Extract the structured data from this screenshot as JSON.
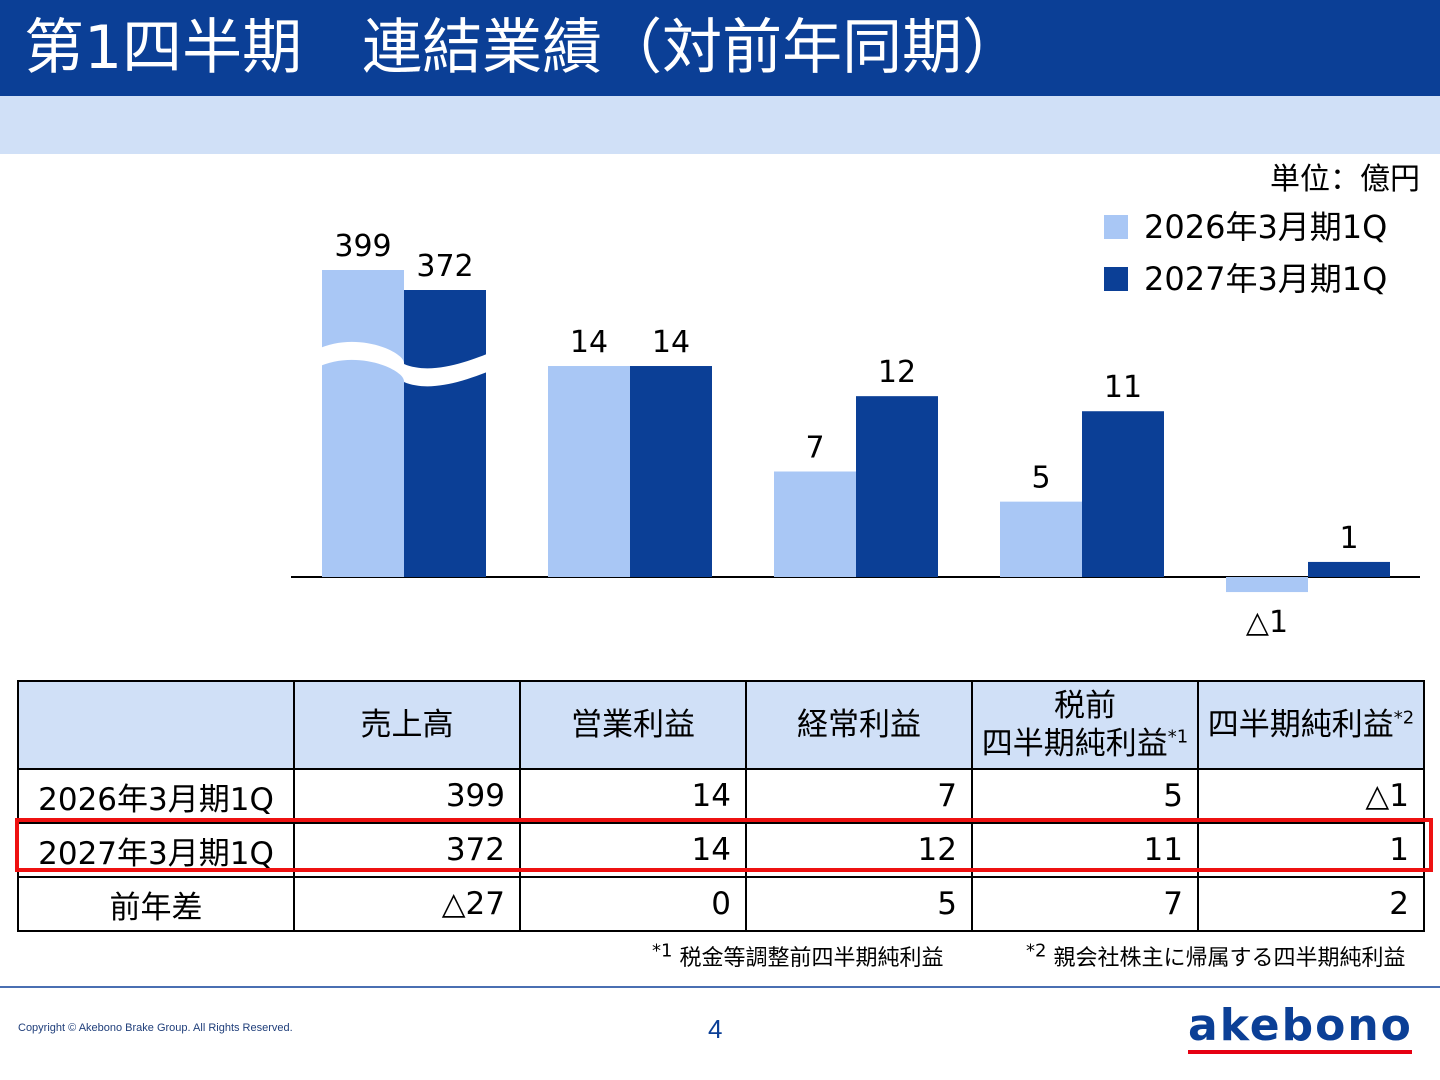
{
  "header": {
    "title": "第1四半期　連結業績（対前年同期）"
  },
  "unit_label": "単位：億円",
  "chart_data": {
    "type": "bar",
    "categories": [
      "売上高",
      "営業利益",
      "経常利益",
      "税前四半期純利益",
      "四半期純利益"
    ],
    "series": [
      {
        "name": "2026年3月期1Q",
        "values": [
          399,
          14,
          7,
          5,
          -1
        ],
        "labels": [
          "399",
          "14",
          "7",
          "5",
          "△1"
        ],
        "color": "#a9c7f5"
      },
      {
        "name": "2027年3月期1Q",
        "values": [
          372,
          14,
          12,
          11,
          1
        ],
        "labels": [
          "372",
          "14",
          "12",
          "11",
          "1"
        ],
        "color": "#0b3f96"
      }
    ],
    "axis_break": true,
    "grid": false,
    "legend_position": "top-right"
  },
  "table": {
    "headers": [
      "",
      "売上高",
      "営業利益",
      "経常利益",
      "税前",
      "四半期純利益",
      "*1",
      "四半期純利益",
      "*2"
    ],
    "rows": [
      {
        "label": "2026年3月期1Q",
        "cells": [
          "399",
          "14",
          "7",
          "5",
          "△1"
        ]
      },
      {
        "label": "2027年3月期1Q",
        "cells": [
          "372",
          "14",
          "12",
          "11",
          "1"
        ]
      },
      {
        "label": "前年差",
        "cells": [
          "△27",
          "0",
          "5",
          "7",
          "2"
        ]
      }
    ]
  },
  "footnotes": [
    {
      "mark": "*1",
      "text": "税金等調整前四半期純利益"
    },
    {
      "mark": "*2",
      "text": "親会社株主に帰属する四半期純利益"
    }
  ],
  "footer": {
    "copyright": "Copyright © Akebono Brake Group. All Rights Reserved.",
    "page_number": "4",
    "logo_text": "akebono"
  },
  "colors": {
    "brand_blue": "#0b3f96",
    "light_blue": "#a9c7f5",
    "header_fill": "#d0e0f7",
    "highlight_red": "#ee1111"
  }
}
